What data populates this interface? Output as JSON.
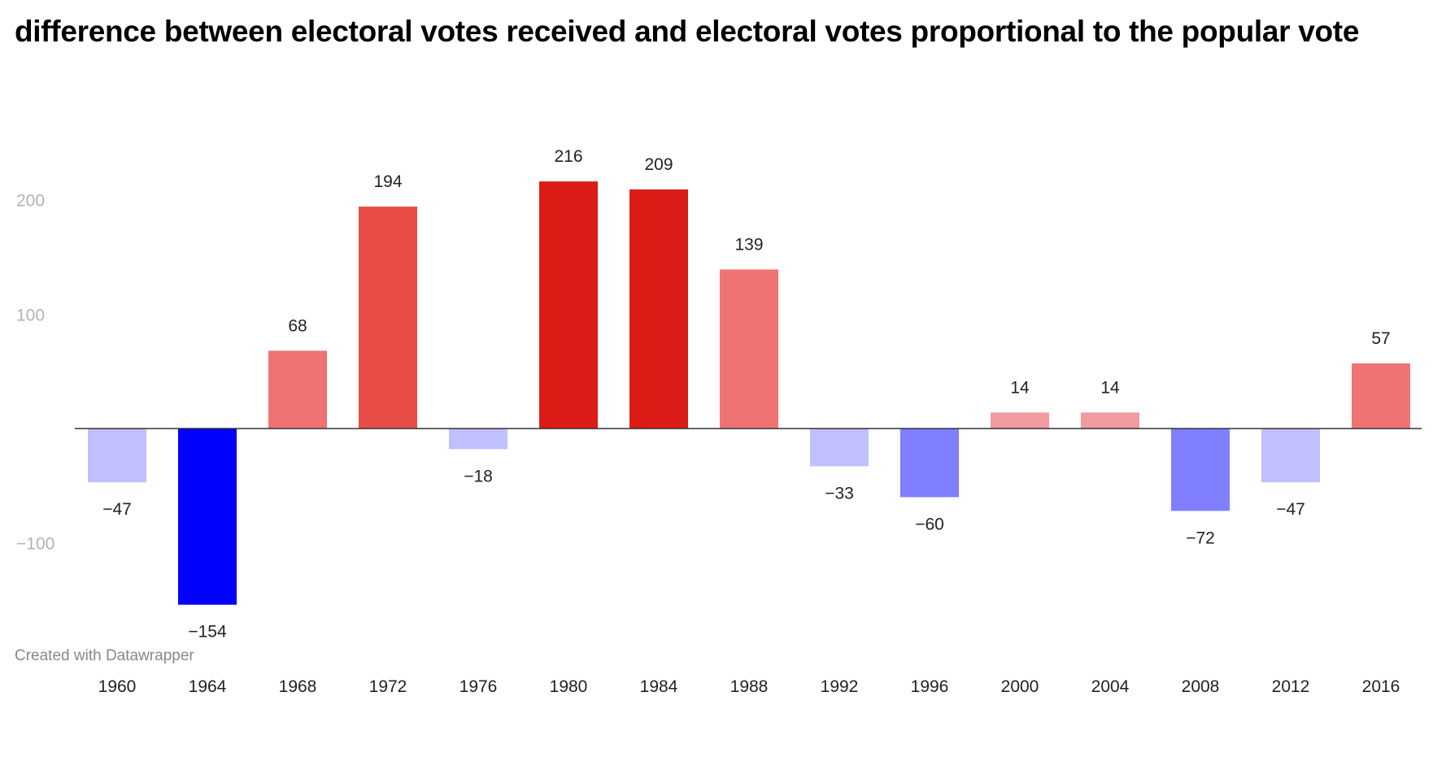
{
  "title": "difference between electoral votes received and electoral votes proportional to the popular vote",
  "footer": "Created with Datawrapper",
  "chart_data": {
    "type": "bar",
    "categories": [
      "1960",
      "1964",
      "1968",
      "1972",
      "1976",
      "1980",
      "1984",
      "1988",
      "1992",
      "1996",
      "2000",
      "2004",
      "2008",
      "2012",
      "2016"
    ],
    "values": [
      -47,
      -154,
      68,
      194,
      -18,
      216,
      209,
      139,
      -33,
      -60,
      14,
      14,
      -72,
      -47,
      57
    ],
    "value_labels": [
      "−47",
      "−154",
      "68",
      "194",
      "−18",
      "216",
      "209",
      "139",
      "−33",
      "−60",
      "14",
      "14",
      "−72",
      "−47",
      "57"
    ],
    "y_ticks": [
      -100,
      100,
      200
    ],
    "y_tick_labels": [
      "−100",
      "100",
      "200"
    ],
    "ylim": [
      -185,
      240
    ],
    "grid": false,
    "legend": "none",
    "colors": {
      "negative_light": "#c0c0ff",
      "negative_mid": "#7f7fff",
      "negative_dark": "#0000ff",
      "positive_light": "#f29aa0",
      "positive_mid": "#ef7373",
      "positive_strong": "#e84d48",
      "positive_dark": "#dc1c17",
      "axis_line": "#333333"
    },
    "bar_colors": [
      "#c0c0ff",
      "#0000ff",
      "#ef7373",
      "#e84d48",
      "#c0c0ff",
      "#dc1c17",
      "#dc1c17",
      "#ef7373",
      "#c0c0ff",
      "#7f7fff",
      "#f29aa0",
      "#f29aa0",
      "#7f7fff",
      "#c0c0ff",
      "#ef7373"
    ]
  }
}
